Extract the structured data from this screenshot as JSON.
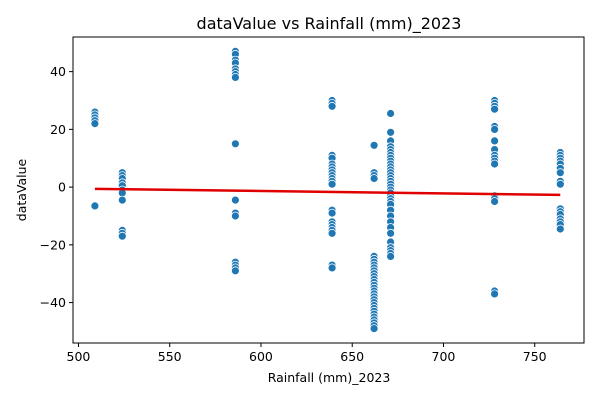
{
  "chart_data": {
    "type": "scatter",
    "title": "dataValue vs Rainfall (mm)_2023",
    "xlabel": "Rainfall (mm)_2023",
    "ylabel": "dataValue",
    "xlim": [
      497,
      777
    ],
    "ylim": [
      -54,
      52
    ],
    "xticks": [
      500,
      550,
      600,
      650,
      700,
      750
    ],
    "yticks": [
      -40,
      -20,
      0,
      20,
      40
    ],
    "grid": false,
    "colors": {
      "points": "#1f77b4",
      "point_edge": "#ffffff",
      "trend": "#e00000",
      "axes": "#000000"
    },
    "trend_line": {
      "x": [
        509,
        764
      ],
      "y": [
        -0.6,
        -2.7
      ]
    },
    "series": [
      {
        "points": [
          [
            509,
            26
          ],
          [
            509,
            25
          ],
          [
            509,
            24
          ],
          [
            509,
            23
          ],
          [
            509,
            22
          ],
          [
            509,
            -6.5
          ],
          [
            524,
            5
          ],
          [
            524,
            4
          ],
          [
            524,
            3
          ],
          [
            524,
            1.5
          ],
          [
            524,
            0.5
          ],
          [
            524,
            -1
          ],
          [
            524,
            -2
          ],
          [
            524,
            -4.5
          ],
          [
            524,
            -15
          ],
          [
            524,
            -16
          ],
          [
            524,
            -17
          ],
          [
            586,
            47
          ],
          [
            586,
            46
          ],
          [
            586,
            44
          ],
          [
            586,
            43
          ],
          [
            586,
            41
          ],
          [
            586,
            40
          ],
          [
            586,
            39
          ],
          [
            586,
            38
          ],
          [
            586,
            15
          ],
          [
            586,
            -4.5
          ],
          [
            586,
            -9
          ],
          [
            586,
            -10
          ],
          [
            586,
            -26
          ],
          [
            586,
            -27
          ],
          [
            586,
            -28
          ],
          [
            586,
            -29
          ],
          [
            639,
            30
          ],
          [
            639,
            29
          ],
          [
            639,
            28
          ],
          [
            639,
            11
          ],
          [
            639,
            10
          ],
          [
            639,
            8
          ],
          [
            639,
            7
          ],
          [
            639,
            6
          ],
          [
            639,
            5
          ],
          [
            639,
            4
          ],
          [
            639,
            3
          ],
          [
            639,
            2
          ],
          [
            639,
            1
          ],
          [
            639,
            -8
          ],
          [
            639,
            -9
          ],
          [
            639,
            -12
          ],
          [
            639,
            -13
          ],
          [
            639,
            -14
          ],
          [
            639,
            -15
          ],
          [
            639,
            -16
          ],
          [
            639,
            -27
          ],
          [
            639,
            -28
          ],
          [
            662,
            14.5
          ],
          [
            662,
            5
          ],
          [
            662,
            4
          ],
          [
            662,
            3
          ],
          [
            662,
            -24
          ],
          [
            662,
            -25
          ],
          [
            662,
            -26
          ],
          [
            662,
            -27
          ],
          [
            662,
            -28
          ],
          [
            662,
            -29
          ],
          [
            662,
            -30
          ],
          [
            662,
            -31
          ],
          [
            662,
            -32
          ],
          [
            662,
            -33
          ],
          [
            662,
            -34
          ],
          [
            662,
            -35
          ],
          [
            662,
            -36
          ],
          [
            662,
            -37
          ],
          [
            662,
            -38
          ],
          [
            662,
            -39
          ],
          [
            662,
            -40
          ],
          [
            662,
            -41
          ],
          [
            662,
            -42
          ],
          [
            662,
            -43
          ],
          [
            662,
            -44
          ],
          [
            662,
            -45
          ],
          [
            662,
            -46
          ],
          [
            662,
            -47
          ],
          [
            662,
            -48
          ],
          [
            662,
            -49
          ],
          [
            671,
            25.5
          ],
          [
            671,
            19
          ],
          [
            671,
            16
          ],
          [
            671,
            14
          ],
          [
            671,
            13
          ],
          [
            671,
            12
          ],
          [
            671,
            11
          ],
          [
            671,
            10
          ],
          [
            671,
            9
          ],
          [
            671,
            8
          ],
          [
            671,
            7
          ],
          [
            671,
            6
          ],
          [
            671,
            5
          ],
          [
            671,
            4
          ],
          [
            671,
            3
          ],
          [
            671,
            2
          ],
          [
            671,
            1
          ],
          [
            671,
            0
          ],
          [
            671,
            -1
          ],
          [
            671,
            -2
          ],
          [
            671,
            -3
          ],
          [
            671,
            -4
          ],
          [
            671,
            -5
          ],
          [
            671,
            -6
          ],
          [
            671,
            -8
          ],
          [
            671,
            -10
          ],
          [
            671,
            -12
          ],
          [
            671,
            -14
          ],
          [
            671,
            -16
          ],
          [
            671,
            -19
          ],
          [
            671,
            -21
          ],
          [
            671,
            -22
          ],
          [
            671,
            -23
          ],
          [
            671,
            -24
          ],
          [
            728,
            30
          ],
          [
            728,
            29
          ],
          [
            728,
            28
          ],
          [
            728,
            27
          ],
          [
            728,
            21
          ],
          [
            728,
            20
          ],
          [
            728,
            16
          ],
          [
            728,
            13
          ],
          [
            728,
            11
          ],
          [
            728,
            10
          ],
          [
            728,
            9
          ],
          [
            728,
            8
          ],
          [
            728,
            -3
          ],
          [
            728,
            -4
          ],
          [
            728,
            -5
          ],
          [
            728,
            -36
          ],
          [
            728,
            -37
          ],
          [
            764,
            12
          ],
          [
            764,
            11
          ],
          [
            764,
            10
          ],
          [
            764,
            9
          ],
          [
            764,
            8
          ],
          [
            764,
            6.5
          ],
          [
            764,
            5
          ],
          [
            764,
            2
          ],
          [
            764,
            1
          ],
          [
            764,
            -7.5
          ],
          [
            764,
            -8.5
          ],
          [
            764,
            -9.5
          ],
          [
            764,
            -11
          ],
          [
            764,
            -12
          ],
          [
            764,
            -13
          ],
          [
            764,
            -14.5
          ]
        ]
      }
    ]
  }
}
